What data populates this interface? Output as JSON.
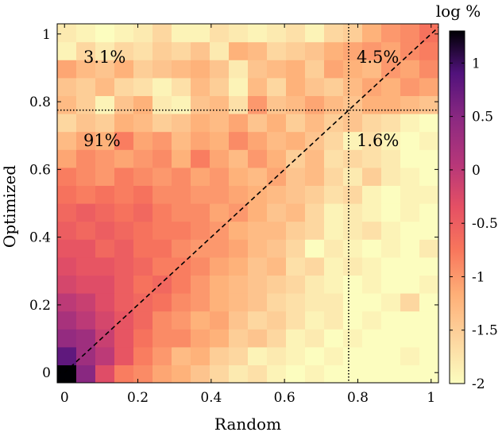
{
  "chart_data": {
    "type": "heatmap",
    "xlabel": "Random",
    "ylabel": "Optimized",
    "xlim": [
      -0.02,
      1.02
    ],
    "ylim": [
      -0.03,
      1.03
    ],
    "x_ticks": [
      "0",
      "0.2",
      "0.4",
      "0.6",
      "0.8",
      "1"
    ],
    "y_ticks": [
      "0",
      "0.2",
      "0.4",
      "0.6",
      "0.8",
      "1"
    ],
    "x_tick_values": [
      0,
      0.2,
      0.4,
      0.6,
      0.8,
      1
    ],
    "y_tick_values": [
      0,
      0.2,
      0.4,
      0.6,
      0.8,
      1
    ],
    "colorbar": {
      "title": "log %",
      "range": [
        -2,
        1.3
      ],
      "ticks": [
        "1",
        "0.5",
        "0",
        "-0.5",
        "-1",
        "-1.5",
        "-2"
      ],
      "tick_values": [
        1,
        0.5,
        0,
        -0.5,
        -1,
        -1.5,
        -2
      ],
      "colormap": "magma (reversed)"
    },
    "threshold": 0.775,
    "diagonal": "y = x (dashed)",
    "quadrant_labels": {
      "top_left": "3.1%",
      "top_right": "4.5%",
      "bottom_left": "91%",
      "bottom_right": "1.6%"
    },
    "grid_n": 20,
    "rows_bottom_to_top": [
      [
        1.3,
        0.5,
        -0.3,
        -0.8,
        -0.9,
        -1.1,
        -1.2,
        -1.4,
        -1.6,
        -1.8,
        -1.7,
        -1.9,
        -2.0,
        -1.9,
        -2.0,
        -2.0,
        -2.0,
        -2.0,
        -2.0,
        -2.0
      ],
      [
        0.8,
        0.3,
        0.0,
        -0.4,
        -0.8,
        -1.0,
        -1.3,
        -1.2,
        -1.5,
        -1.6,
        -1.9,
        -1.8,
        -1.9,
        -2.0,
        -1.9,
        -2.0,
        -2.0,
        -2.0,
        -1.9,
        -2.0
      ],
      [
        0.4,
        0.3,
        -0.1,
        -0.4,
        -0.7,
        -0.9,
        -0.9,
        -1.1,
        -1.2,
        -1.5,
        -1.4,
        -1.6,
        -1.9,
        -1.8,
        -2.0,
        -1.9,
        -2.0,
        -2.0,
        -2.0,
        -2.0
      ],
      [
        0.2,
        0.0,
        -0.2,
        -0.4,
        -0.6,
        -0.9,
        -1.0,
        -1.2,
        -1.1,
        -1.4,
        -1.6,
        -1.5,
        -1.7,
        -1.9,
        -1.8,
        -2.0,
        -1.9,
        -2.0,
        -2.0,
        -2.0
      ],
      [
        0.0,
        -0.1,
        -0.3,
        -0.5,
        -0.6,
        -0.7,
        -0.9,
        -1.0,
        -1.2,
        -1.3,
        -1.4,
        -1.6,
        -1.7,
        -1.8,
        -1.8,
        -2.0,
        -2.0,
        -1.9,
        -1.6,
        -2.0
      ],
      [
        -0.2,
        -0.3,
        -0.3,
        -0.5,
        -0.7,
        -0.6,
        -0.8,
        -1.0,
        -1.2,
        -1.3,
        -1.4,
        -1.5,
        -1.6,
        -1.8,
        -1.9,
        -2.0,
        -1.9,
        -2.0,
        -2.0,
        -1.9
      ],
      [
        -0.3,
        -0.4,
        -0.4,
        -0.5,
        -0.6,
        -0.8,
        -0.8,
        -0.9,
        -1.1,
        -1.2,
        -1.4,
        -1.3,
        -1.7,
        -1.6,
        -1.9,
        -1.8,
        -1.9,
        -2.0,
        -2.0,
        -2.0
      ],
      [
        -0.4,
        -0.4,
        -0.6,
        -0.5,
        -0.7,
        -0.7,
        -0.9,
        -1.0,
        -1.0,
        -1.1,
        -1.3,
        -1.4,
        -1.6,
        -2.0,
        -1.8,
        -1.9,
        -2.0,
        -1.9,
        -2.0,
        -1.8
      ],
      [
        -0.5,
        -0.6,
        -0.5,
        -0.6,
        -0.7,
        -0.8,
        -0.8,
        -0.9,
        -1.0,
        -1.2,
        -1.3,
        -1.3,
        -1.5,
        -1.6,
        -1.9,
        -1.8,
        -1.7,
        -1.9,
        -2.0,
        -2.0
      ],
      [
        -0.6,
        -0.5,
        -0.6,
        -0.7,
        -0.6,
        -0.8,
        -0.9,
        -0.9,
        -1.1,
        -1.0,
        -1.2,
        -1.4,
        -1.3,
        -1.6,
        -1.9,
        -1.8,
        -1.9,
        -2.0,
        -1.9,
        -2.0
      ],
      [
        -0.7,
        -0.8,
        -0.7,
        -0.8,
        -0.7,
        -0.9,
        -0.9,
        -1.0,
        -1.0,
        -1.1,
        -1.2,
        -1.3,
        -1.4,
        -1.5,
        -1.7,
        -1.6,
        -1.9,
        -2.0,
        -1.9,
        -1.9
      ],
      [
        -0.8,
        -0.9,
        -1.0,
        -0.8,
        -0.9,
        -1.0,
        -0.9,
        -1.1,
        -1.0,
        -1.2,
        -1.3,
        -1.1,
        -1.4,
        -1.3,
        -1.6,
        -1.8,
        -1.5,
        -1.8,
        -1.9,
        -2.0
      ],
      [
        -1.1,
        -0.9,
        -1.0,
        -1.1,
        -1.0,
        -0.9,
        -1.2,
        -0.8,
        -1.1,
        -1.3,
        -1.0,
        -1.2,
        -1.5,
        -1.3,
        -1.7,
        -1.6,
        -1.7,
        -1.8,
        -2.0,
        -2.0
      ],
      [
        -1.3,
        -1.1,
        -1.2,
        -0.8,
        -1.1,
        -1.0,
        -1.3,
        -1.1,
        -1.2,
        -0.9,
        -1.1,
        -1.3,
        -1.2,
        -1.4,
        -1.6,
        -1.9,
        -1.7,
        -1.9,
        -2.0,
        -1.9
      ],
      [
        -1.6,
        -1.4,
        -1.5,
        -1.2,
        -1.3,
        -1.5,
        -1.4,
        -1.2,
        -1.3,
        -1.1,
        -1.4,
        -1.2,
        -1.5,
        -1.3,
        -1.5,
        -1.4,
        -1.6,
        -1.7,
        -1.9,
        -2.0
      ],
      [
        -1.3,
        -1.5,
        -1.9,
        -1.4,
        -1.2,
        -1.8,
        -1.9,
        -1.4,
        -1.3,
        -1.7,
        -1.0,
        -1.4,
        -1.3,
        -1.1,
        -1.3,
        -1.4,
        -1.2,
        -1.2,
        -1.3,
        -1.4
      ],
      [
        -1.4,
        -1.5,
        -1.3,
        -1.6,
        -1.7,
        -1.9,
        -1.7,
        -1.3,
        -1.5,
        -1.9,
        -1.3,
        -1.6,
        -1.2,
        -1.4,
        -1.5,
        -1.3,
        -1.1,
        -1.2,
        -1.0,
        -1.1
      ],
      [
        -1.1,
        -1.3,
        -1.4,
        -1.2,
        -1.5,
        -1.4,
        -1.3,
        -1.2,
        -1.4,
        -1.8,
        -1.4,
        -1.3,
        -1.2,
        -1.5,
        -1.1,
        -1.2,
        -1.3,
        -1.0,
        -1.1,
        -0.9
      ],
      [
        -1.9,
        -1.6,
        -1.8,
        -1.6,
        -1.7,
        -1.5,
        -1.6,
        -1.4,
        -1.8,
        -1.2,
        -1.3,
        -1.6,
        -1.5,
        -1.4,
        -1.2,
        -1.1,
        -1.0,
        -1.1,
        -0.9,
        -0.8
      ],
      [
        -1.8,
        -1.9,
        -2.0,
        -1.9,
        -1.8,
        -1.6,
        -1.9,
        -1.9,
        -1.7,
        -1.8,
        -1.9,
        -1.8,
        -1.7,
        -1.9,
        -1.6,
        -1.5,
        -1.2,
        -1.0,
        -0.9,
        -0.7
      ]
    ]
  }
}
